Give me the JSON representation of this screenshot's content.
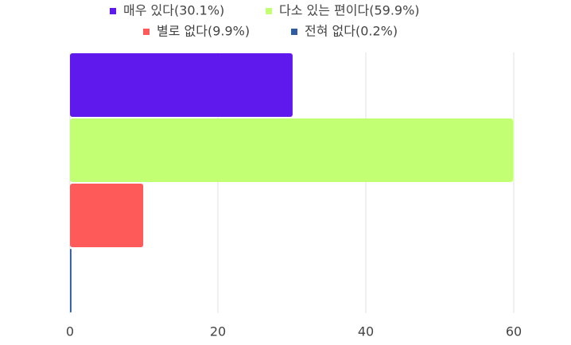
{
  "chart_data": {
    "type": "bar",
    "orientation": "horizontal",
    "series": [
      {
        "name": "매우 있다(30.1%)",
        "color": "#6019ec",
        "values": [
          30.1
        ]
      },
      {
        "name": "다소 있는 편이다(59.9%)",
        "color": "#c3ff73",
        "values": [
          59.9
        ]
      },
      {
        "name": "별로 없다(9.9%)",
        "color": "#ff5a5a",
        "values": [
          9.9
        ]
      },
      {
        "name": "전혀 없다(0.2%)",
        "color": "#2f5c9a",
        "values": [
          0.2
        ]
      }
    ],
    "xlim": [
      0,
      60
    ],
    "xticks": [
      0,
      20,
      40,
      60
    ],
    "grid": true,
    "legend": "top"
  }
}
